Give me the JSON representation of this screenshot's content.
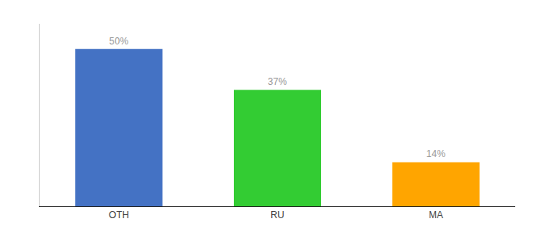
{
  "chart_data": {
    "type": "bar",
    "categories": [
      "OTH",
      "RU",
      "MA"
    ],
    "values": [
      50,
      37,
      14
    ],
    "value_labels": [
      "50%",
      "37%",
      "14%"
    ],
    "colors": [
      "#4472C4",
      "#33CC33",
      "#FFA500"
    ],
    "ylim": [
      0,
      58
    ],
    "grid": false,
    "data_labels": true,
    "tick_labels": "x"
  }
}
